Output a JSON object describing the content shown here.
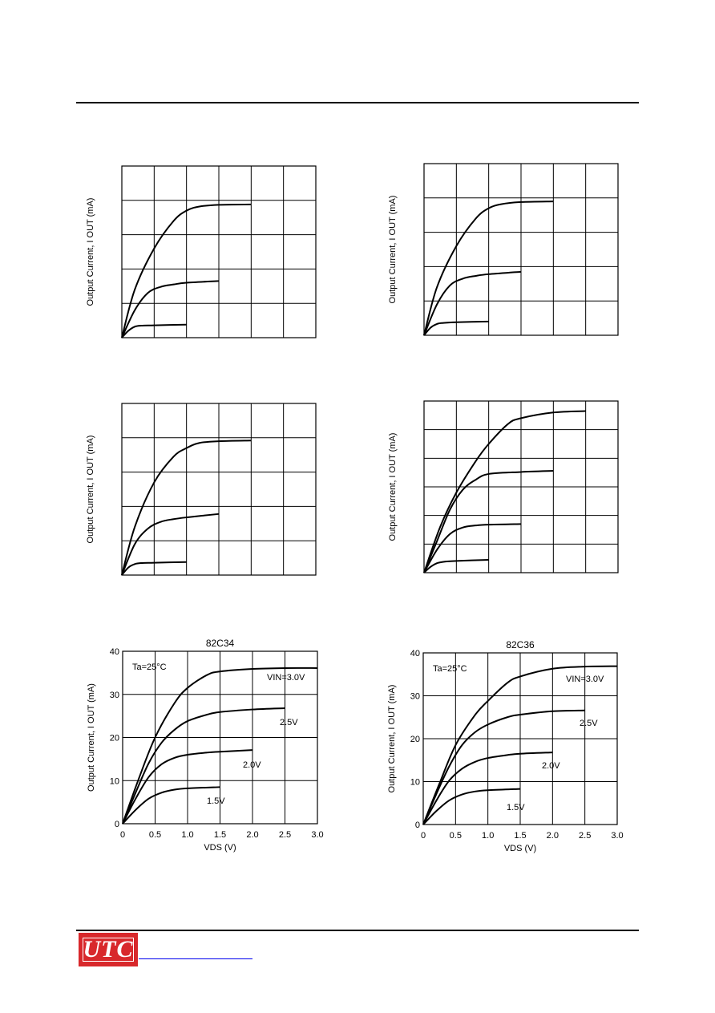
{
  "chart_data": [
    {
      "type": "line",
      "title": "",
      "xlabel": "",
      "ylabel": "Output Current, I OUT (mA)",
      "xlim": [
        0,
        3.0
      ],
      "ylim": [
        0,
        50
      ],
      "xgrid": 6,
      "ygrid": 5,
      "show_ticks": false,
      "grid": true,
      "series": [
        {
          "x": [
            0,
            0.2,
            0.5,
            0.8,
            1.0,
            1.2,
            1.5,
            2.0
          ],
          "y": [
            0,
            14,
            26,
            34,
            37,
            38.2,
            38.7,
            38.8
          ]
        },
        {
          "x": [
            0,
            0.2,
            0.4,
            0.6,
            0.8,
            1.0,
            1.5
          ],
          "y": [
            0,
            8,
            13,
            14.8,
            15.5,
            16,
            16.5
          ]
        },
        {
          "x": [
            0,
            0.1,
            0.2,
            0.3,
            0.5,
            1.0
          ],
          "y": [
            0,
            2,
            3.2,
            3.5,
            3.6,
            3.8
          ]
        }
      ]
    },
    {
      "type": "line",
      "title": "",
      "xlabel": "",
      "ylabel": "Output Current, I OUT (mA)",
      "xlim": [
        0,
        3.0
      ],
      "ylim": [
        0,
        50
      ],
      "xgrid": 6,
      "ygrid": 5,
      "show_ticks": false,
      "grid": true,
      "series": [
        {
          "x": [
            0,
            0.2,
            0.5,
            0.8,
            1.0,
            1.2,
            1.5,
            2.0
          ],
          "y": [
            0,
            14,
            26,
            34,
            37,
            38.2,
            38.8,
            39
          ]
        },
        {
          "x": [
            0,
            0.2,
            0.4,
            0.6,
            0.8,
            1.0,
            1.5
          ],
          "y": [
            0,
            9,
            14.5,
            16.5,
            17.3,
            17.8,
            18.5
          ]
        },
        {
          "x": [
            0,
            0.1,
            0.2,
            0.3,
            0.5,
            1.0
          ],
          "y": [
            0,
            2.2,
            3.3,
            3.6,
            3.8,
            4
          ]
        }
      ]
    },
    {
      "type": "line",
      "title": "",
      "xlabel": "",
      "ylabel": "Output Current, I OUT (mA)",
      "xlim": [
        0,
        3.0
      ],
      "ylim": [
        0,
        50
      ],
      "xgrid": 6,
      "ygrid": 5,
      "show_ticks": false,
      "grid": true,
      "series": [
        {
          "x": [
            0,
            0.2,
            0.5,
            0.8,
            1.0,
            1.2,
            1.5,
            2.0
          ],
          "y": [
            0,
            14,
            27,
            34.5,
            37,
            38.5,
            39,
            39.2
          ]
        },
        {
          "x": [
            0,
            0.2,
            0.4,
            0.6,
            0.8,
            1.0,
            1.5
          ],
          "y": [
            0,
            9,
            13.5,
            15.5,
            16.3,
            16.8,
            17.8
          ]
        },
        {
          "x": [
            0,
            0.1,
            0.2,
            0.3,
            0.5,
            1.0
          ],
          "y": [
            0,
            2.2,
            3.2,
            3.5,
            3.6,
            3.8
          ]
        }
      ]
    },
    {
      "type": "line",
      "title": "",
      "xlabel": "",
      "ylabel": "Output Current, I OUT (mA)",
      "xlim": [
        0,
        3.0
      ],
      "ylim": [
        0,
        60
      ],
      "xgrid": 6,
      "ygrid": 6,
      "show_ticks": false,
      "grid": true,
      "series": [
        {
          "x": [
            0,
            0.25,
            0.5,
            0.8,
            1.0,
            1.3,
            1.5,
            2.0,
            2.5
          ],
          "y": [
            0,
            16,
            28,
            39,
            45,
            52,
            54,
            56,
            56.5
          ]
        },
        {
          "x": [
            0,
            0.2,
            0.4,
            0.6,
            0.8,
            1.0,
            1.5,
            2.0
          ],
          "y": [
            0,
            11,
            22,
            29,
            32.5,
            34.5,
            35.2,
            35.6
          ]
        },
        {
          "x": [
            0,
            0.2,
            0.4,
            0.6,
            0.8,
            1.0,
            1.5
          ],
          "y": [
            0,
            8,
            13.5,
            15.8,
            16.5,
            16.8,
            17
          ]
        },
        {
          "x": [
            0,
            0.1,
            0.2,
            0.3,
            0.5,
            1.0
          ],
          "y": [
            0,
            2,
            3.3,
            3.8,
            4.1,
            4.5
          ]
        }
      ]
    },
    {
      "type": "line",
      "title": "82C34",
      "xlabel": "VDS (V)",
      "ylabel": "Output Current, I OUT (mA)",
      "xlim": [
        0,
        3.0
      ],
      "ylim": [
        0,
        40
      ],
      "xgrid": 6,
      "ygrid": 4,
      "show_ticks": true,
      "grid": true,
      "xticks": [
        "0",
        "0.5",
        "1.0",
        "1.5",
        "2.0",
        "2.5",
        "3.0"
      ],
      "yticks": [
        "0",
        "10",
        "20",
        "30",
        "40"
      ],
      "annotation": "Ta=25°C",
      "series": [
        {
          "name": "VIN=3.0V",
          "x": [
            0,
            0.25,
            0.5,
            0.8,
            1.0,
            1.3,
            1.5,
            2.0,
            2.5,
            3.0
          ],
          "y": [
            0,
            10.5,
            20,
            28,
            31.5,
            34.5,
            35.3,
            35.9,
            36.1,
            36.1
          ]
        },
        {
          "name": "2.5V",
          "x": [
            0,
            0.2,
            0.4,
            0.6,
            0.8,
            1.0,
            1.3,
            1.5,
            2.0,
            2.5
          ],
          "y": [
            0,
            7.2,
            14,
            18.8,
            21.8,
            23.8,
            25.3,
            25.9,
            26.5,
            26.8
          ]
        },
        {
          "name": "2.0V",
          "x": [
            0,
            0.2,
            0.4,
            0.6,
            0.8,
            1.0,
            1.3,
            1.5,
            2.0
          ],
          "y": [
            0,
            5.8,
            10.8,
            13.8,
            15.3,
            16,
            16.5,
            16.7,
            17.1
          ]
        },
        {
          "name": "1.5V",
          "x": [
            0,
            0.2,
            0.4,
            0.6,
            0.8,
            1.0,
            1.5
          ],
          "y": [
            0,
            3.2,
            5.8,
            7.2,
            7.9,
            8.2,
            8.5
          ]
        }
      ],
      "labels": [
        "VIN=3.0V",
        "2.5V",
        "2.0V",
        "1.5V"
      ]
    },
    {
      "type": "line",
      "title": "82C36",
      "xlabel": "VDS (V)",
      "ylabel": "Output Current, I OUT (mA)",
      "xlim": [
        0,
        3.0
      ],
      "ylim": [
        0,
        40
      ],
      "xgrid": 6,
      "ygrid": 4,
      "show_ticks": true,
      "grid": true,
      "xticks": [
        "0",
        "0.5",
        "1.0",
        "1.5",
        "2.0",
        "2.5",
        "3.0"
      ],
      "yticks": [
        "0",
        "10",
        "20",
        "30",
        "40"
      ],
      "annotation": "Ta=25°C",
      "series": [
        {
          "name": "VIN=3.0V",
          "x": [
            0,
            0.25,
            0.5,
            0.8,
            1.0,
            1.3,
            1.5,
            2.0,
            2.5,
            3.0
          ],
          "y": [
            0,
            9.5,
            18.5,
            25.5,
            28.8,
            33,
            34.5,
            36.3,
            36.8,
            36.9
          ]
        },
        {
          "name": "2.5V",
          "x": [
            0,
            0.2,
            0.4,
            0.6,
            0.8,
            1.0,
            1.3,
            1.5,
            2.0,
            2.5
          ],
          "y": [
            0,
            7,
            13.5,
            18.5,
            21.5,
            23.3,
            25,
            25.6,
            26.4,
            26.6
          ]
        },
        {
          "name": "2.0V",
          "x": [
            0,
            0.2,
            0.4,
            0.6,
            0.8,
            1.0,
            1.3,
            1.5,
            2.0
          ],
          "y": [
            0,
            5.5,
            10.2,
            13,
            14.6,
            15.5,
            16.2,
            16.5,
            16.8
          ]
        },
        {
          "name": "1.5V",
          "x": [
            0,
            0.2,
            0.4,
            0.6,
            0.8,
            1.0,
            1.5
          ],
          "y": [
            0,
            3.1,
            5.6,
            7,
            7.7,
            8,
            8.3
          ]
        }
      ],
      "labels": [
        "VIN=3.0V",
        "2.5V",
        "2.0V",
        "1.5V"
      ]
    }
  ],
  "footer": {
    "logo_text": "UTC",
    "logo_color": "#d8282b"
  }
}
